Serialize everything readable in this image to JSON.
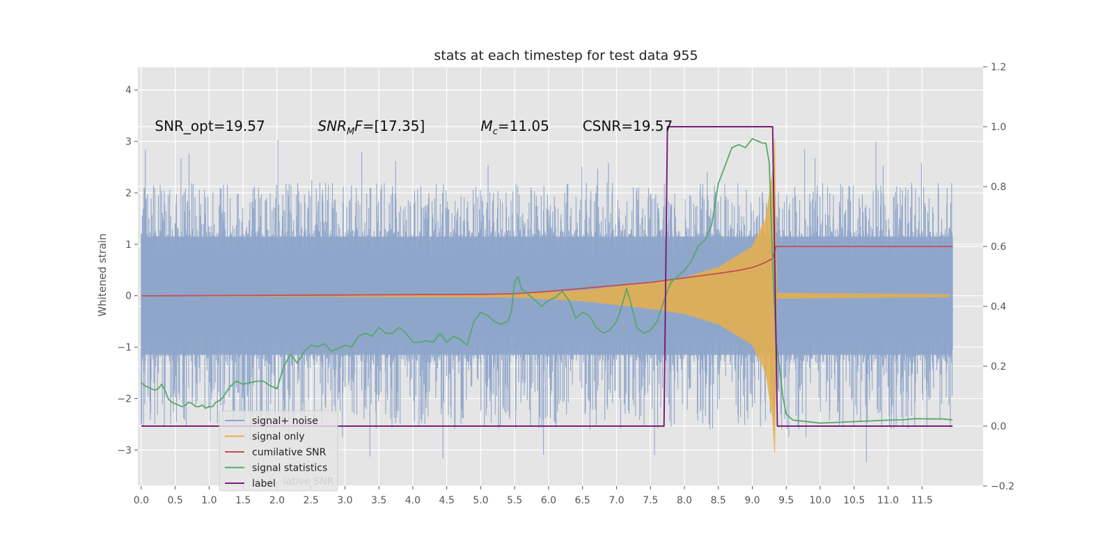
{
  "chart_data": {
    "type": "line",
    "title": "stats at each timestep for test data 955",
    "ylabel": "Whitened strain",
    "xlim": [
      -0.05,
      12.4
    ],
    "ylim": [
      -3.7,
      4.45
    ],
    "y2lim": [
      -0.2,
      1.2
    ],
    "grid": true,
    "xticks": [
      0.0,
      0.5,
      1.0,
      1.5,
      2.0,
      2.5,
      3.0,
      3.5,
      4.0,
      4.5,
      5.0,
      5.5,
      6.0,
      6.5,
      7.0,
      7.5,
      8.0,
      8.5,
      9.0,
      9.5,
      10.0,
      10.5,
      11.0,
      11.5
    ],
    "xtick_labels": [
      "0.0",
      "0.5",
      "1.0",
      "1.5",
      "2.0",
      "2.5",
      "3.0",
      "3.5",
      "4.0",
      "4.5",
      "5.0",
      "5.5",
      "6.0",
      "6.5",
      "7.0",
      "7.5",
      "8.0",
      "8.5",
      "9.0",
      "9.5",
      "10.0",
      "10.5",
      "11.0",
      "11.5"
    ],
    "yticks": [
      -3,
      -2,
      -1,
      0,
      1,
      2,
      3,
      4
    ],
    "ytick_labels": [
      "−3",
      "−2",
      "−1",
      "0",
      "1",
      "2",
      "3",
      "4"
    ],
    "y2ticks": [
      -0.2,
      0.0,
      0.2,
      0.4,
      0.6,
      0.8,
      1.0,
      1.2
    ],
    "y2tick_labels": [
      "−0.2",
      "0.0",
      "0.2",
      "0.4",
      "0.6",
      "0.8",
      "1.0",
      "1.2"
    ],
    "legend_position": "lower-left",
    "series": [
      {
        "name": "signal+ noise",
        "axis": "left",
        "color": "#8fa6cb",
        "style": "dense-noise",
        "x_range": [
          0.0,
          11.95
        ],
        "envelope_max": [
          2.2,
          3.2
        ],
        "envelope_min": [
          -2.6,
          -3.35
        ],
        "core_amplitude": 1.3
      },
      {
        "name": "signal only",
        "axis": "left",
        "color": "#e8b04a",
        "style": "chirp",
        "x_range": [
          0.0,
          11.95
        ],
        "envelope": [
          [
            0.0,
            0.0
          ],
          [
            5.5,
            0.03
          ],
          [
            6.5,
            0.1
          ],
          [
            7.5,
            0.25
          ],
          [
            8.0,
            0.35
          ],
          [
            8.5,
            0.55
          ],
          [
            9.0,
            0.95
          ],
          [
            9.2,
            1.5
          ],
          [
            9.3,
            2.4
          ],
          [
            9.33,
            3.05
          ],
          [
            9.36,
            0.05
          ],
          [
            11.95,
            0.02
          ]
        ]
      },
      {
        "name": "cumilative SNR",
        "axis": "right",
        "color": "#c44e52",
        "x": [
          0.0,
          1.0,
          2.0,
          3.0,
          4.0,
          5.0,
          5.5,
          6.0,
          6.5,
          7.0,
          7.5,
          8.0,
          8.5,
          8.8,
          9.0,
          9.1,
          9.2,
          9.3,
          9.35,
          9.4,
          10.0,
          11.0,
          11.95
        ],
        "values": [
          0.435,
          0.436,
          0.437,
          0.438,
          0.439,
          0.44,
          0.442,
          0.45,
          0.46,
          0.47,
          0.48,
          0.495,
          0.51,
          0.52,
          0.53,
          0.538,
          0.548,
          0.56,
          0.6,
          0.6,
          0.6,
          0.6,
          0.6
        ]
      },
      {
        "name": "signal statistics",
        "axis": "right",
        "color": "#55a868",
        "x": [
          0.0,
          0.05,
          0.1,
          0.15,
          0.2,
          0.25,
          0.3,
          0.35,
          0.4,
          0.45,
          0.5,
          0.55,
          0.6,
          0.65,
          0.7,
          0.75,
          0.8,
          0.85,
          0.9,
          0.95,
          1.0,
          1.05,
          1.1,
          1.15,
          1.2,
          1.3,
          1.4,
          1.5,
          1.6,
          1.7,
          1.8,
          1.9,
          2.0,
          2.1,
          2.2,
          2.3,
          2.4,
          2.5,
          2.6,
          2.7,
          2.8,
          2.9,
          3.0,
          3.1,
          3.2,
          3.3,
          3.4,
          3.5,
          3.6,
          3.7,
          3.8,
          3.9,
          4.0,
          4.1,
          4.2,
          4.3,
          4.4,
          4.5,
          4.6,
          4.7,
          4.8,
          4.9,
          5.0,
          5.1,
          5.2,
          5.3,
          5.4,
          5.45,
          5.5,
          5.55,
          5.6,
          5.7,
          5.8,
          5.9,
          6.0,
          6.1,
          6.2,
          6.3,
          6.4,
          6.5,
          6.6,
          6.7,
          6.8,
          6.9,
          7.0,
          7.05,
          7.1,
          7.15,
          7.2,
          7.3,
          7.4,
          7.5,
          7.6,
          7.7,
          7.8,
          7.9,
          8.0,
          8.1,
          8.2,
          8.3,
          8.4,
          8.5,
          8.6,
          8.7,
          8.8,
          8.9,
          9.0,
          9.1,
          9.15,
          9.2,
          9.25,
          9.3,
          9.35,
          9.4,
          9.45,
          9.5,
          9.6,
          10.0,
          10.5,
          10.8,
          11.0,
          11.2,
          11.4,
          11.6,
          11.8,
          11.95
        ],
        "values": [
          0.145,
          0.135,
          0.13,
          0.125,
          0.12,
          0.125,
          0.14,
          0.12,
          0.09,
          0.08,
          0.075,
          0.07,
          0.065,
          0.07,
          0.08,
          0.075,
          0.065,
          0.065,
          0.07,
          0.06,
          0.065,
          0.065,
          0.08,
          0.085,
          0.095,
          0.13,
          0.15,
          0.14,
          0.145,
          0.15,
          0.15,
          0.135,
          0.125,
          0.2,
          0.24,
          0.21,
          0.25,
          0.27,
          0.265,
          0.275,
          0.25,
          0.26,
          0.27,
          0.265,
          0.3,
          0.31,
          0.3,
          0.33,
          0.31,
          0.31,
          0.33,
          0.31,
          0.28,
          0.28,
          0.285,
          0.28,
          0.31,
          0.28,
          0.3,
          0.29,
          0.27,
          0.35,
          0.38,
          0.37,
          0.35,
          0.34,
          0.35,
          0.38,
          0.48,
          0.5,
          0.46,
          0.44,
          0.42,
          0.4,
          0.42,
          0.43,
          0.45,
          0.42,
          0.36,
          0.38,
          0.37,
          0.33,
          0.31,
          0.32,
          0.35,
          0.38,
          0.42,
          0.46,
          0.42,
          0.33,
          0.31,
          0.32,
          0.35,
          0.42,
          0.48,
          0.5,
          0.52,
          0.55,
          0.6,
          0.62,
          0.67,
          0.81,
          0.87,
          0.93,
          0.94,
          0.93,
          0.96,
          0.95,
          0.945,
          0.945,
          0.88,
          0.55,
          0.28,
          0.2,
          0.1,
          0.04,
          0.02,
          0.01,
          0.015,
          0.018,
          0.02,
          0.021,
          0.025,
          0.024,
          0.024,
          0.021
        ],
        "legend_suffix_visible": "lative SNR"
      },
      {
        "name": "label",
        "axis": "right",
        "color": "#7a1e7a",
        "x": [
          0.0,
          7.7,
          7.75,
          9.3,
          9.37,
          11.95
        ],
        "values": [
          0.0,
          0.0,
          1.0,
          1.0,
          0.0,
          0.0
        ]
      }
    ],
    "annotations": [
      {
        "text": "SNR_opt=19.57",
        "x": 0.2,
        "y": 3.3
      },
      {
        "text": "F=[17.35]",
        "math_prefix": "SNR",
        "math_subscript": "M",
        "x": 2.6,
        "y": 3.3
      },
      {
        "text": "=11.05",
        "math_prefix": "M",
        "math_subscript": "c",
        "x": 5.0,
        "y": 3.3
      },
      {
        "text": "CSNR=19.57",
        "x": 6.5,
        "y": 3.3
      }
    ]
  }
}
